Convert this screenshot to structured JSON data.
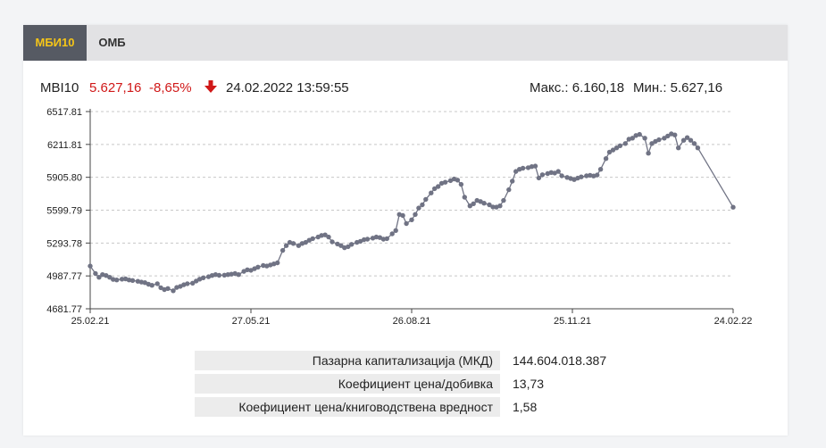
{
  "tabs": [
    {
      "label": "МБИ10",
      "active": true
    },
    {
      "label": "ОМБ",
      "active": false
    }
  ],
  "quote": {
    "index_name": "MBI10",
    "value": "5.627,16",
    "change": "-8,65%",
    "direction": "down",
    "datetime": "24.02.2022 13:59:55",
    "max_label": "Макс.: 6.160,18",
    "min_label": "Мин.: 5.627,16"
  },
  "colors": {
    "accent_tab": "#f5c518",
    "negative": "#d01818",
    "series": "#707384"
  },
  "chart_data": {
    "type": "line",
    "title": "",
    "xlabel": "",
    "ylabel": "",
    "x_tick_labels": [
      "25.02.21",
      "27.05.21",
      "26.08.21",
      "25.11.21",
      "24.02.22"
    ],
    "x_ticks": [
      "2021-02-25",
      "2021-05-27",
      "2021-08-26",
      "2021-11-25",
      "2022-02-24"
    ],
    "y_ticks": [
      4681.77,
      4987.77,
      5293.78,
      5599.79,
      5905.8,
      6211.81,
      6517.81
    ],
    "y_tick_labels": [
      "4681.77",
      "4987.77",
      "5293.78",
      "5599.79",
      "5905.80",
      "6211.81",
      "6517.81"
    ],
    "ylim": [
      4681.77,
      6517.81
    ],
    "xlim": [
      "2021-02-25",
      "2022-02-24"
    ],
    "grid": "horizontal dashed",
    "series": [
      {
        "markers": true,
        "points": [
          [
            "2021-02-25",
            5080
          ],
          [
            "2021-02-28",
            5010
          ],
          [
            "2021-03-02",
            4975
          ],
          [
            "2021-03-04",
            5000
          ],
          [
            "2021-03-06",
            4992
          ],
          [
            "2021-03-08",
            4975
          ],
          [
            "2021-03-10",
            4955
          ],
          [
            "2021-03-12",
            4950
          ],
          [
            "2021-03-15",
            4958
          ],
          [
            "2021-03-17",
            4960
          ],
          [
            "2021-03-19",
            4950
          ],
          [
            "2021-03-21",
            4945
          ],
          [
            "2021-03-24",
            4938
          ],
          [
            "2021-03-26",
            4930
          ],
          [
            "2021-03-28",
            4925
          ],
          [
            "2021-03-30",
            4910
          ],
          [
            "2021-04-01",
            4900
          ],
          [
            "2021-04-04",
            4915
          ],
          [
            "2021-04-06",
            4878
          ],
          [
            "2021-04-08",
            4860
          ],
          [
            "2021-04-10",
            4870
          ],
          [
            "2021-04-13",
            4850
          ],
          [
            "2021-04-15",
            4880
          ],
          [
            "2021-04-17",
            4890
          ],
          [
            "2021-04-19",
            4905
          ],
          [
            "2021-04-21",
            4915
          ],
          [
            "2021-04-24",
            4920
          ],
          [
            "2021-04-26",
            4940
          ],
          [
            "2021-04-28",
            4958
          ],
          [
            "2021-04-30",
            4970
          ],
          [
            "2021-05-03",
            4980
          ],
          [
            "2021-05-05",
            4992
          ],
          [
            "2021-05-07",
            5000
          ],
          [
            "2021-05-09",
            4993
          ],
          [
            "2021-05-12",
            4995
          ],
          [
            "2021-05-14",
            5000
          ],
          [
            "2021-05-16",
            5004
          ],
          [
            "2021-05-18",
            5010
          ],
          [
            "2021-05-20",
            5000
          ],
          [
            "2021-05-23",
            5030
          ],
          [
            "2021-05-25",
            5045
          ],
          [
            "2021-05-27",
            5040
          ],
          [
            "2021-05-29",
            5055
          ],
          [
            "2021-05-31",
            5070
          ],
          [
            "2021-06-03",
            5085
          ],
          [
            "2021-06-05",
            5080
          ],
          [
            "2021-06-07",
            5090
          ],
          [
            "2021-06-09",
            5100
          ],
          [
            "2021-06-11",
            5110
          ],
          [
            "2021-06-14",
            5225
          ],
          [
            "2021-06-16",
            5270
          ],
          [
            "2021-06-18",
            5300
          ],
          [
            "2021-06-20",
            5290
          ],
          [
            "2021-06-23",
            5270
          ],
          [
            "2021-06-25",
            5290
          ],
          [
            "2021-06-27",
            5300
          ],
          [
            "2021-06-29",
            5320
          ],
          [
            "2021-07-01",
            5335
          ],
          [
            "2021-07-04",
            5350
          ],
          [
            "2021-07-06",
            5365
          ],
          [
            "2021-07-08",
            5370
          ],
          [
            "2021-07-10",
            5350
          ],
          [
            "2021-07-12",
            5305
          ],
          [
            "2021-07-15",
            5285
          ],
          [
            "2021-07-17",
            5270
          ],
          [
            "2021-07-19",
            5250
          ],
          [
            "2021-07-21",
            5260
          ],
          [
            "2021-07-23",
            5282
          ],
          [
            "2021-07-26",
            5300
          ],
          [
            "2021-07-28",
            5310
          ],
          [
            "2021-07-30",
            5325
          ],
          [
            "2021-08-01",
            5330
          ],
          [
            "2021-08-04",
            5340
          ],
          [
            "2021-08-06",
            5350
          ],
          [
            "2021-08-08",
            5345
          ],
          [
            "2021-08-10",
            5330
          ],
          [
            "2021-08-12",
            5335
          ],
          [
            "2021-08-15",
            5380
          ],
          [
            "2021-08-17",
            5410
          ],
          [
            "2021-08-19",
            5560
          ],
          [
            "2021-08-21",
            5550
          ],
          [
            "2021-08-23",
            5475
          ],
          [
            "2021-08-26",
            5510
          ],
          [
            "2021-08-28",
            5560
          ],
          [
            "2021-08-30",
            5620
          ],
          [
            "2021-09-01",
            5650
          ],
          [
            "2021-09-03",
            5700
          ],
          [
            "2021-09-06",
            5760
          ],
          [
            "2021-09-08",
            5800
          ],
          [
            "2021-09-10",
            5820
          ],
          [
            "2021-09-12",
            5850
          ],
          [
            "2021-09-14",
            5860
          ],
          [
            "2021-09-17",
            5875
          ],
          [
            "2021-09-19",
            5890
          ],
          [
            "2021-09-21",
            5880
          ],
          [
            "2021-09-23",
            5840
          ],
          [
            "2021-09-25",
            5720
          ],
          [
            "2021-09-28",
            5640
          ],
          [
            "2021-09-30",
            5660
          ],
          [
            "2021-10-02",
            5690
          ],
          [
            "2021-10-04",
            5680
          ],
          [
            "2021-10-06",
            5665
          ],
          [
            "2021-10-09",
            5650
          ],
          [
            "2021-10-11",
            5630
          ],
          [
            "2021-10-13",
            5628
          ],
          [
            "2021-10-15",
            5640
          ],
          [
            "2021-10-17",
            5690
          ],
          [
            "2021-10-20",
            5790
          ],
          [
            "2021-10-22",
            5870
          ],
          [
            "2021-10-24",
            5960
          ],
          [
            "2021-10-26",
            5980
          ],
          [
            "2021-10-28",
            5990
          ],
          [
            "2021-10-31",
            5995
          ],
          [
            "2021-11-02",
            6005
          ],
          [
            "2021-11-04",
            6010
          ],
          [
            "2021-11-06",
            5900
          ],
          [
            "2021-11-08",
            5930
          ],
          [
            "2021-11-11",
            5940
          ],
          [
            "2021-11-13",
            5950
          ],
          [
            "2021-11-15",
            5945
          ],
          [
            "2021-11-17",
            5960
          ],
          [
            "2021-11-19",
            5920
          ],
          [
            "2021-11-22",
            5905
          ],
          [
            "2021-11-24",
            5895
          ],
          [
            "2021-11-26",
            5885
          ],
          [
            "2021-11-28",
            5898
          ],
          [
            "2021-11-30",
            5910
          ],
          [
            "2021-12-03",
            5920
          ],
          [
            "2021-12-05",
            5925
          ],
          [
            "2021-12-07",
            5918
          ],
          [
            "2021-12-09",
            5927
          ],
          [
            "2021-12-11",
            5980
          ],
          [
            "2021-12-14",
            6080
          ],
          [
            "2021-12-16",
            6140
          ],
          [
            "2021-12-18",
            6160
          ],
          [
            "2021-12-20",
            6180
          ],
          [
            "2021-12-22",
            6200
          ],
          [
            "2021-12-25",
            6220
          ],
          [
            "2021-12-27",
            6260
          ],
          [
            "2021-12-29",
            6270
          ],
          [
            "2021-12-31",
            6295
          ],
          [
            "2022-01-02",
            6305
          ],
          [
            "2022-01-05",
            6270
          ],
          [
            "2022-01-07",
            6130
          ],
          [
            "2022-01-09",
            6220
          ],
          [
            "2022-01-11",
            6240
          ],
          [
            "2022-01-13",
            6255
          ],
          [
            "2022-01-16",
            6270
          ],
          [
            "2022-01-18",
            6290
          ],
          [
            "2022-01-20",
            6310
          ],
          [
            "2022-01-22",
            6300
          ],
          [
            "2022-01-24",
            6180
          ],
          [
            "2022-01-27",
            6250
          ],
          [
            "2022-01-29",
            6275
          ],
          [
            "2022-01-31",
            6250
          ],
          [
            "2022-02-02",
            6220
          ],
          [
            "2022-02-04",
            6180
          ],
          [
            "2022-02-24",
            5627.16
          ]
        ]
      }
    ]
  },
  "stats": [
    {
      "label": "Пазарна капитализација (МКД)",
      "value": "144.604.018.387"
    },
    {
      "label": "Коефициент цена/добивка",
      "value": "13,73"
    },
    {
      "label": "Коефициент цена/книговодствена вредност",
      "value": "1,58"
    }
  ]
}
